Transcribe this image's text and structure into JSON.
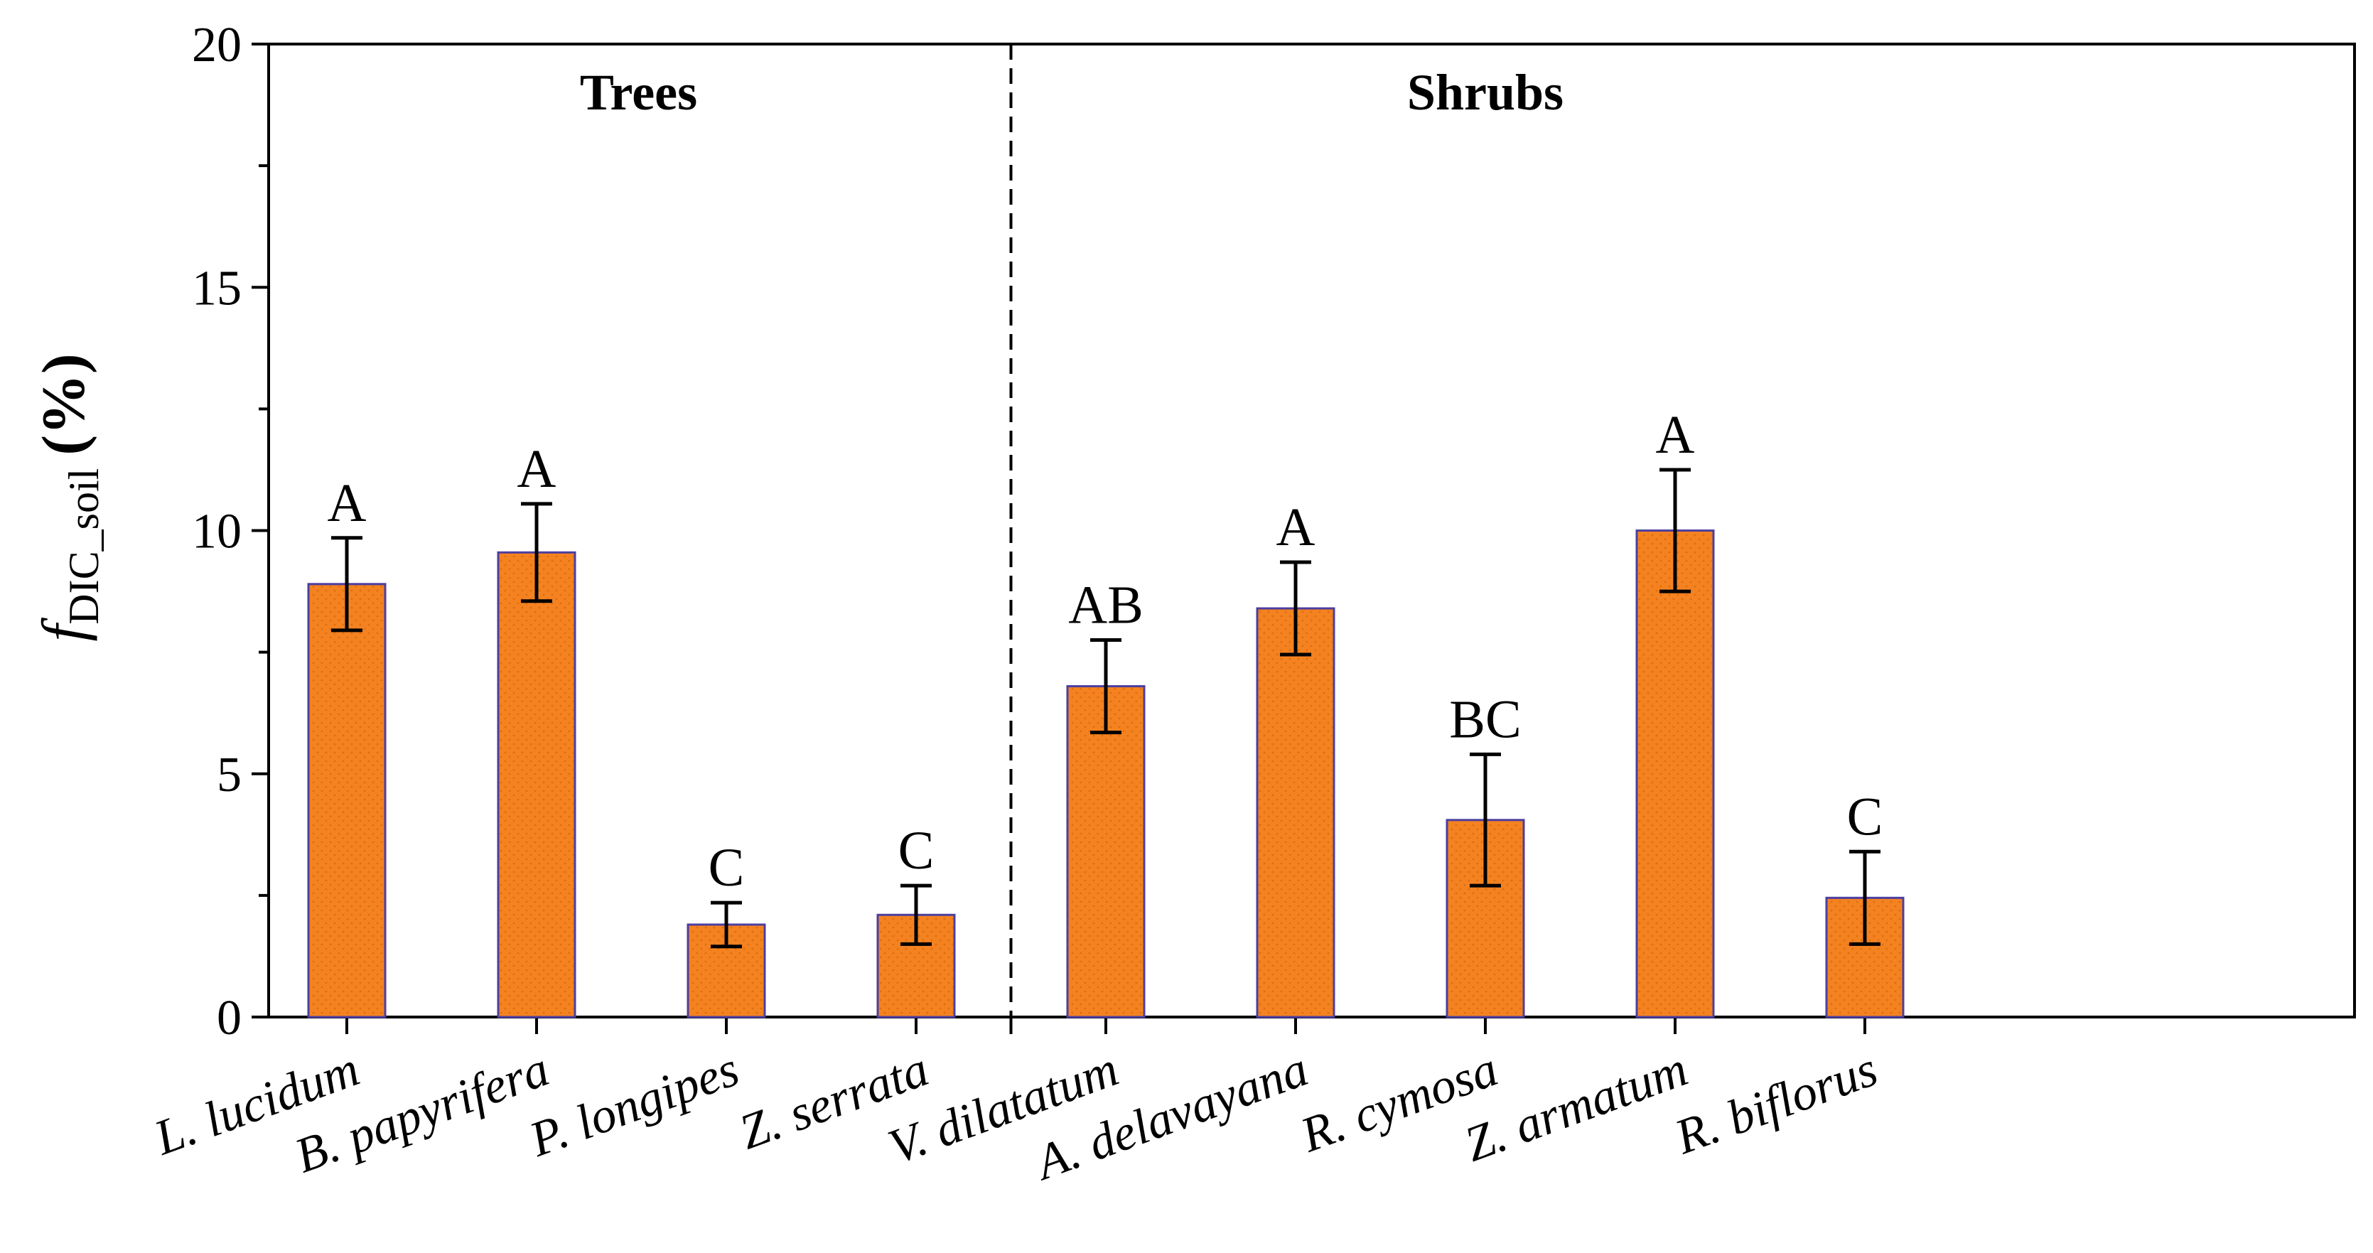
{
  "chart_data": {
    "type": "bar",
    "title": "",
    "ylabel": {
      "main": "f",
      "subscript": "DIC_soil",
      "unit": "(%)"
    },
    "ylim": [
      0,
      20
    ],
    "yticks": [
      "0",
      "5",
      "10",
      "15",
      "20"
    ],
    "groups": [
      {
        "name": "Trees",
        "categories": [
          "L. lucidum",
          "B. papyrifera",
          "P. longipes",
          "Z. serrata"
        ]
      },
      {
        "name": "Shrubs",
        "categories": [
          "V. dilatatum",
          "A. delavayana",
          "R. cymosa",
          "Z. armatum",
          "R. biflorus"
        ]
      }
    ],
    "categories": [
      "L. lucidum",
      "B. papyrifera",
      "P. longipes",
      "Z. serrata",
      "V. dilatatum",
      "A. delavayana",
      "R. cymosa",
      "Z. armatum",
      "R. biflorus"
    ],
    "values": [
      8.9,
      9.55,
      1.9,
      2.1,
      6.8,
      8.4,
      4.05,
      10.0,
      2.45
    ],
    "errors": [
      0.95,
      1.0,
      0.45,
      0.6,
      0.95,
      0.95,
      1.35,
      1.25,
      0.95
    ],
    "significance": [
      "A",
      "A",
      "C",
      "C",
      "AB",
      "A",
      "BC",
      "A",
      "C"
    ],
    "colors": {
      "bar_fill": "#F58220",
      "bar_edge": "#4B3FA0",
      "error": "#000000",
      "axis": "#000000"
    }
  }
}
